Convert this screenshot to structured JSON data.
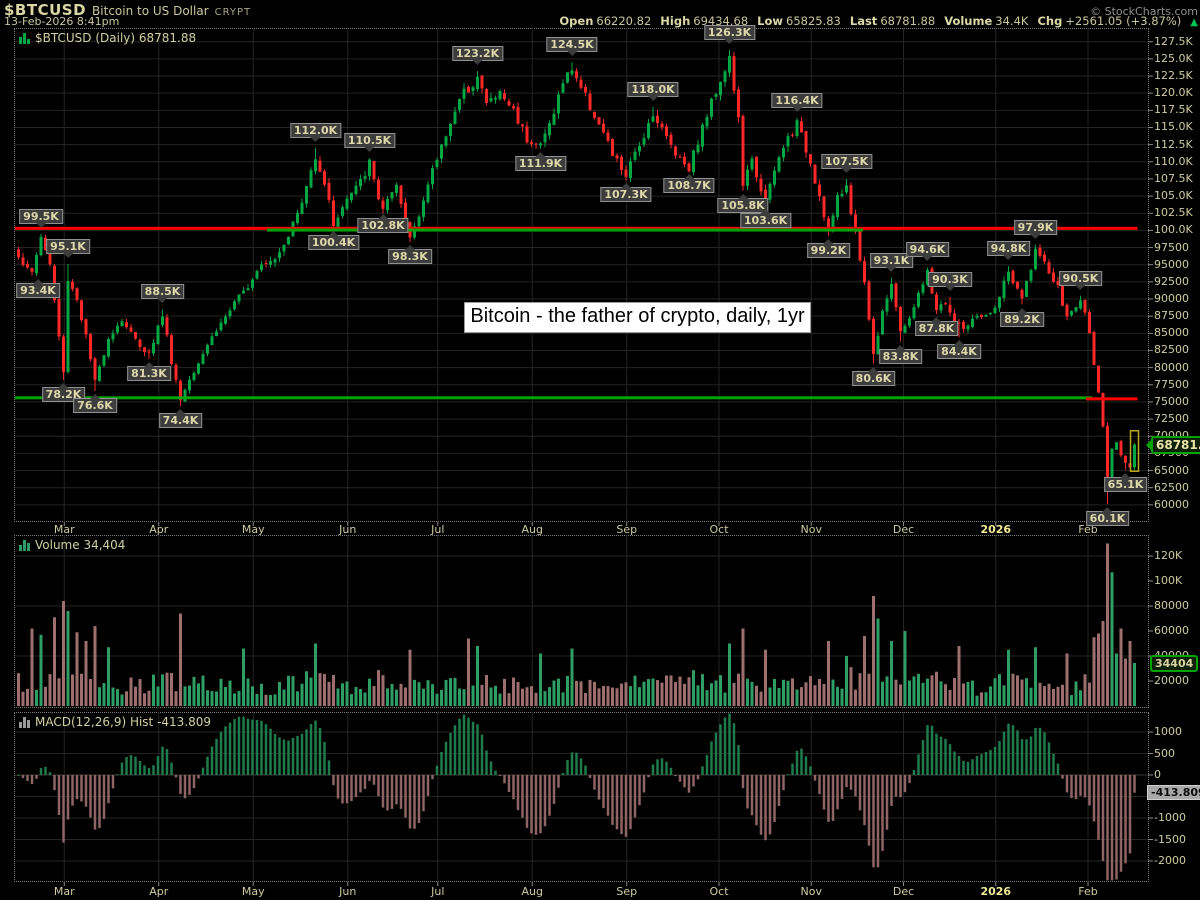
{
  "header": {
    "ticker": "$BTCUSD",
    "name": "Bitcoin to US Dollar",
    "exchange": "CRYPT",
    "datetime": "13-Feb-2026 8:41pm",
    "copyright": "© StockCharts.com",
    "quote": [
      {
        "label": "Open",
        "value": "66220.82"
      },
      {
        "label": "High",
        "value": "69434.68"
      },
      {
        "label": "Low",
        "value": "65825.83"
      },
      {
        "label": "Last",
        "value": "68781.88"
      },
      {
        "label": "Volume",
        "value": "34.4K"
      },
      {
        "label": "Chg",
        "value": "+2561.05 (+3.87%)"
      }
    ],
    "arrow": "▲"
  },
  "chart_data": [
    {
      "type": "candlestick",
      "panel": "price",
      "legend": "$BTCUSD (Daily) 68781.88",
      "annotation": "Bitcoin - the father of crypto, daily, 1yr",
      "last_price_label": "68781.88",
      "last_price_value": 68781.88,
      "price_axis": {
        "max": 129500,
        "min": 57500,
        "tick_step": 2500,
        "tick_labels": [
          "127.5K",
          "125.0K",
          "122.5K",
          "120.0K",
          "117.5K",
          "115.0K",
          "112.5K",
          "110.0K",
          "107.5K",
          "105.0K",
          "102.5K",
          "100.0K",
          "97500",
          "95000",
          "92500",
          "90000",
          "87500",
          "85000",
          "82500",
          "80000",
          "77500",
          "75000",
          "72500",
          "70000",
          "67500",
          "65000",
          "62500",
          "60000"
        ]
      },
      "months": [
        {
          "label": "Mar",
          "day": 10.5
        },
        {
          "label": "Apr",
          "day": 31.5
        },
        {
          "label": "May",
          "day": 52.5
        },
        {
          "label": "Jun",
          "day": 73.5
        },
        {
          "label": "Jul",
          "day": 93.5
        },
        {
          "label": "Aug",
          "day": 114.5
        },
        {
          "label": "Sep",
          "day": 135.5
        },
        {
          "label": "Oct",
          "day": 156
        },
        {
          "label": "Nov",
          "day": 176.5
        },
        {
          "label": "Dec",
          "day": 197
        },
        {
          "label": "2026",
          "day": 217.5,
          "bold": true
        },
        {
          "label": "Feb",
          "day": 238
        }
      ],
      "days": 249,
      "close_anchors": [
        [
          0,
          96500
        ],
        [
          2,
          94200
        ],
        [
          3,
          93800
        ],
        [
          5,
          99200
        ],
        [
          7,
          95000
        ],
        [
          9,
          84500
        ],
        [
          10,
          79200
        ],
        [
          11,
          93000
        ],
        [
          13,
          90000
        ],
        [
          15,
          84500
        ],
        [
          17,
          77800
        ],
        [
          20,
          84500
        ],
        [
          23,
          87000
        ],
        [
          26,
          84000
        ],
        [
          29,
          82000
        ],
        [
          32,
          87800
        ],
        [
          34,
          81000
        ],
        [
          36,
          75300
        ],
        [
          38,
          78500
        ],
        [
          42,
          83500
        ],
        [
          46,
          87500
        ],
        [
          50,
          91000
        ],
        [
          54,
          95500
        ],
        [
          57,
          96000
        ],
        [
          60,
          99500
        ],
        [
          63,
          104000
        ],
        [
          66,
          111000
        ],
        [
          68,
          107000
        ],
        [
          70,
          101000
        ],
        [
          73,
          104500
        ],
        [
          76,
          107000
        ],
        [
          78,
          109800
        ],
        [
          80,
          104800
        ],
        [
          81,
          103300
        ],
        [
          84,
          106000
        ],
        [
          87,
          99000
        ],
        [
          90,
          104500
        ],
        [
          93,
          110500
        ],
        [
          96,
          116000
        ],
        [
          99,
          120000
        ],
        [
          102,
          122400
        ],
        [
          104,
          118500
        ],
        [
          107,
          120000
        ],
        [
          110,
          117500
        ],
        [
          113,
          113500
        ],
        [
          116,
          112400
        ],
        [
          118,
          115500
        ],
        [
          121,
          121500
        ],
        [
          123,
          123700
        ],
        [
          126,
          119500
        ],
        [
          129,
          115500
        ],
        [
          132,
          111000
        ],
        [
          135,
          108000
        ],
        [
          138,
          112500
        ],
        [
          141,
          117200
        ],
        [
          144,
          113500
        ],
        [
          147,
          110500
        ],
        [
          149,
          109300
        ],
        [
          152,
          115000
        ],
        [
          155,
          120500
        ],
        [
          158,
          125200
        ],
        [
          160,
          116000
        ],
        [
          161,
          106800
        ],
        [
          163,
          110000
        ],
        [
          166,
          104300
        ],
        [
          169,
          110500
        ],
        [
          171,
          113500
        ],
        [
          173,
          115500
        ],
        [
          176,
          110000
        ],
        [
          178,
          105000
        ],
        [
          180,
          100000
        ],
        [
          182,
          104500
        ],
        [
          184,
          106500
        ],
        [
          186,
          99500
        ],
        [
          188,
          92500
        ],
        [
          190,
          81800
        ],
        [
          192,
          88500
        ],
        [
          194,
          92400
        ],
        [
          196,
          84800
        ],
        [
          198,
          87500
        ],
        [
          200,
          90500
        ],
        [
          202,
          93800
        ],
        [
          204,
          88500
        ],
        [
          206,
          89500
        ],
        [
          208,
          86500
        ],
        [
          210,
          85800
        ],
        [
          212,
          86800
        ],
        [
          214,
          87200
        ],
        [
          216,
          87600
        ],
        [
          218,
          90500
        ],
        [
          220,
          94000
        ],
        [
          222,
          91000
        ],
        [
          223,
          90000
        ],
        [
          226,
          97200
        ],
        [
          228,
          95000
        ],
        [
          231,
          91500
        ],
        [
          233,
          87200
        ],
        [
          236,
          89800
        ],
        [
          238,
          85500
        ],
        [
          239,
          80800
        ],
        [
          240,
          76000
        ],
        [
          241,
          71000
        ],
        [
          242,
          64000
        ],
        [
          243,
          67800
        ],
        [
          244,
          69200
        ],
        [
          245,
          66800
        ],
        [
          246,
          66400
        ],
        [
          247,
          65600
        ],
        [
          248,
          68781.88
        ]
      ],
      "swing_highs": [
        {
          "day": 5,
          "price": 99500,
          "label": "99.5K"
        },
        {
          "day": 11,
          "price": 95100,
          "label": "95.1K"
        },
        {
          "day": 32,
          "price": 88500,
          "label": "88.5K"
        },
        {
          "day": 66,
          "price": 112000,
          "label": "112.0K"
        },
        {
          "day": 78,
          "price": 110500,
          "label": "110.5K"
        },
        {
          "day": 102,
          "price": 123200,
          "label": "123.2K"
        },
        {
          "day": 123,
          "price": 124500,
          "label": "124.5K"
        },
        {
          "day": 141,
          "price": 118000,
          "label": "118.0K"
        },
        {
          "day": 158,
          "price": 126300,
          "label": "126.3K"
        },
        {
          "day": 173,
          "price": 116400,
          "label": "116.4K"
        },
        {
          "day": 184,
          "price": 107500,
          "label": "107.5K"
        },
        {
          "day": 194,
          "price": 93100,
          "label": "93.1K"
        },
        {
          "day": 202,
          "price": 94600,
          "label": "94.6K"
        },
        {
          "day": 207,
          "price": 90300,
          "label": "90.3K"
        },
        {
          "day": 220,
          "price": 94800,
          "label": "94.8K"
        },
        {
          "day": 226,
          "price": 97900,
          "label": "97.9K"
        },
        {
          "day": 236,
          "price": 90500,
          "label": "90.5K"
        }
      ],
      "swing_lows": [
        {
          "day": 3,
          "price": 93400,
          "label": "93.4K"
        },
        {
          "day": 10,
          "price": 78200,
          "label": "78.2K"
        },
        {
          "day": 17,
          "price": 76600,
          "label": "76.6K"
        },
        {
          "day": 29,
          "price": 81300,
          "label": "81.3K"
        },
        {
          "day": 36,
          "price": 74400,
          "label": "74.4K"
        },
        {
          "day": 70,
          "price": 100400,
          "label": "100.4K"
        },
        {
          "day": 81,
          "price": 102800,
          "label": "102.8K"
        },
        {
          "day": 87,
          "price": 98300,
          "label": "98.3K"
        },
        {
          "day": 116,
          "price": 111900,
          "label": "111.9K"
        },
        {
          "day": 135,
          "price": 107300,
          "label": "107.3K"
        },
        {
          "day": 149,
          "price": 108700,
          "label": "108.7K"
        },
        {
          "day": 161,
          "price": 105800,
          "label": "105.8K"
        },
        {
          "day": 166,
          "price": 103600,
          "label": "103.6K"
        },
        {
          "day": 180,
          "price": 99200,
          "label": "99.2K"
        },
        {
          "day": 190,
          "price": 80600,
          "label": "80.6K"
        },
        {
          "day": 196,
          "price": 83800,
          "label": "83.8K"
        },
        {
          "day": 204,
          "price": 87800,
          "label": "87.8K"
        },
        {
          "day": 209,
          "price": 84400,
          "label": "84.4K"
        },
        {
          "day": 223,
          "price": 89200,
          "label": "89.2K"
        },
        {
          "day": 242,
          "price": 60100,
          "label": "60.1K"
        },
        {
          "day": 246,
          "price": 65100,
          "label": "65.1K"
        }
      ],
      "hlines": [
        {
          "price": 100300,
          "color": "#ff0000",
          "from_day": 0,
          "to_day": 249,
          "width": 3
        },
        {
          "price": 100050,
          "color": "#00a400",
          "from_day": 56,
          "to_day": 188,
          "width": 3
        },
        {
          "price": 75600,
          "color": "#00a400",
          "from_day": 0,
          "to_day": 239,
          "width": 3
        },
        {
          "price": 75450,
          "color": "#ff0000",
          "from_day": 238,
          "to_day": 249,
          "width": 3
        }
      ],
      "highlight_last_candle": true
    },
    {
      "type": "bar",
      "panel": "volume",
      "legend": "Volume 34,404",
      "current_label": "34404",
      "current_value": 34404,
      "axis_ticks": [
        {
          "label": "120K",
          "value": 120000
        },
        {
          "label": "100K",
          "value": 100000
        },
        {
          "label": "80000",
          "value": 80000
        },
        {
          "label": "60000",
          "value": 60000
        },
        {
          "label": "40000",
          "value": 40000
        },
        {
          "label": "20000",
          "value": 20000
        }
      ],
      "grid_values": [
        40000,
        80000,
        120000
      ],
      "overrides": {
        "3": 62000,
        "5": 57000,
        "8": 71000,
        "10": 84000,
        "11": 76000,
        "13": 59000,
        "15": 52000,
        "17": 64000,
        "20": 47000,
        "36": 74000,
        "50": 46000,
        "66": 50000,
        "87": 45000,
        "100": 54000,
        "102": 48000,
        "116": 42000,
        "123": 46000,
        "158": 50000,
        "161": 62000,
        "166": 45000,
        "180": 52000,
        "184": 40000,
        "188": 56000,
        "190": 88000,
        "191": 70000,
        "194": 52000,
        "197": 60000,
        "209": 48000,
        "220": 45000,
        "226": 47000,
        "233": 42000,
        "239": 55000,
        "240": 58000,
        "241": 68000,
        "242": 130000,
        "243": 107000,
        "244": 42000,
        "245": 62000,
        "246": 38000,
        "247": 52000,
        "248": 34404
      }
    },
    {
      "type": "bar",
      "panel": "macd",
      "legend": "MACD(12,26,9) Hist -413.809",
      "params": "12,26,9",
      "current_label": "-413.809",
      "current_value": -413.809,
      "axis_ticks": [
        {
          "label": "1000",
          "value": 1000
        },
        {
          "label": "500",
          "value": 500
        },
        {
          "label": "0",
          "value": 0
        },
        {
          "label": "-500",
          "value": -500
        },
        {
          "label": "-1000",
          "value": -1000
        },
        {
          "label": "-1500",
          "value": -1500
        },
        {
          "label": "-2000",
          "value": -2000
        }
      ],
      "grid_step": 500
    }
  ],
  "colors": {
    "background": "#000000",
    "candle_up": "#00a843",
    "candle_down": "#fb2828",
    "vol_up": "#2f9e64",
    "vol_down": "#9e6f6f",
    "macd_pos": "#1f7a4c",
    "macd_neg": "#8e6464",
    "grid": "#242424",
    "frame": "#7c7c7c",
    "axis_text": "#cfcb9e",
    "red_line": "#ff0000",
    "green_line": "#00a400",
    "highlight_box": "#bba81e"
  }
}
